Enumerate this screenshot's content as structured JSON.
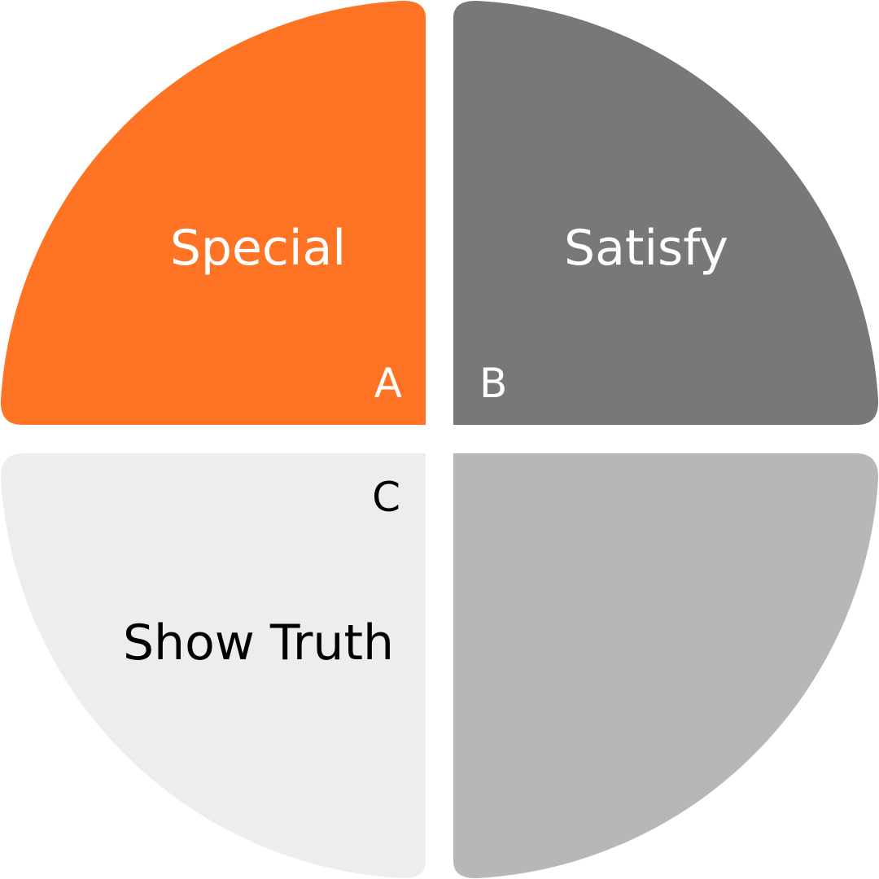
{
  "quadrants": [
    {
      "key": "A",
      "letter": "A",
      "title": "Special",
      "fill": "#FF7324",
      "text_color": "#FFFFFF"
    },
    {
      "key": "B",
      "letter": "B",
      "title": "Satisfy",
      "fill": "#787878",
      "text_color": "#FFFFFF"
    },
    {
      "key": "C",
      "letter": "C",
      "title": "Show Truth",
      "fill": "#EDEDED",
      "text_color": "#000000"
    },
    {
      "key": "D",
      "letter": "",
      "title": "",
      "fill": "#B7B7B7",
      "text_color": "#000000"
    }
  ]
}
